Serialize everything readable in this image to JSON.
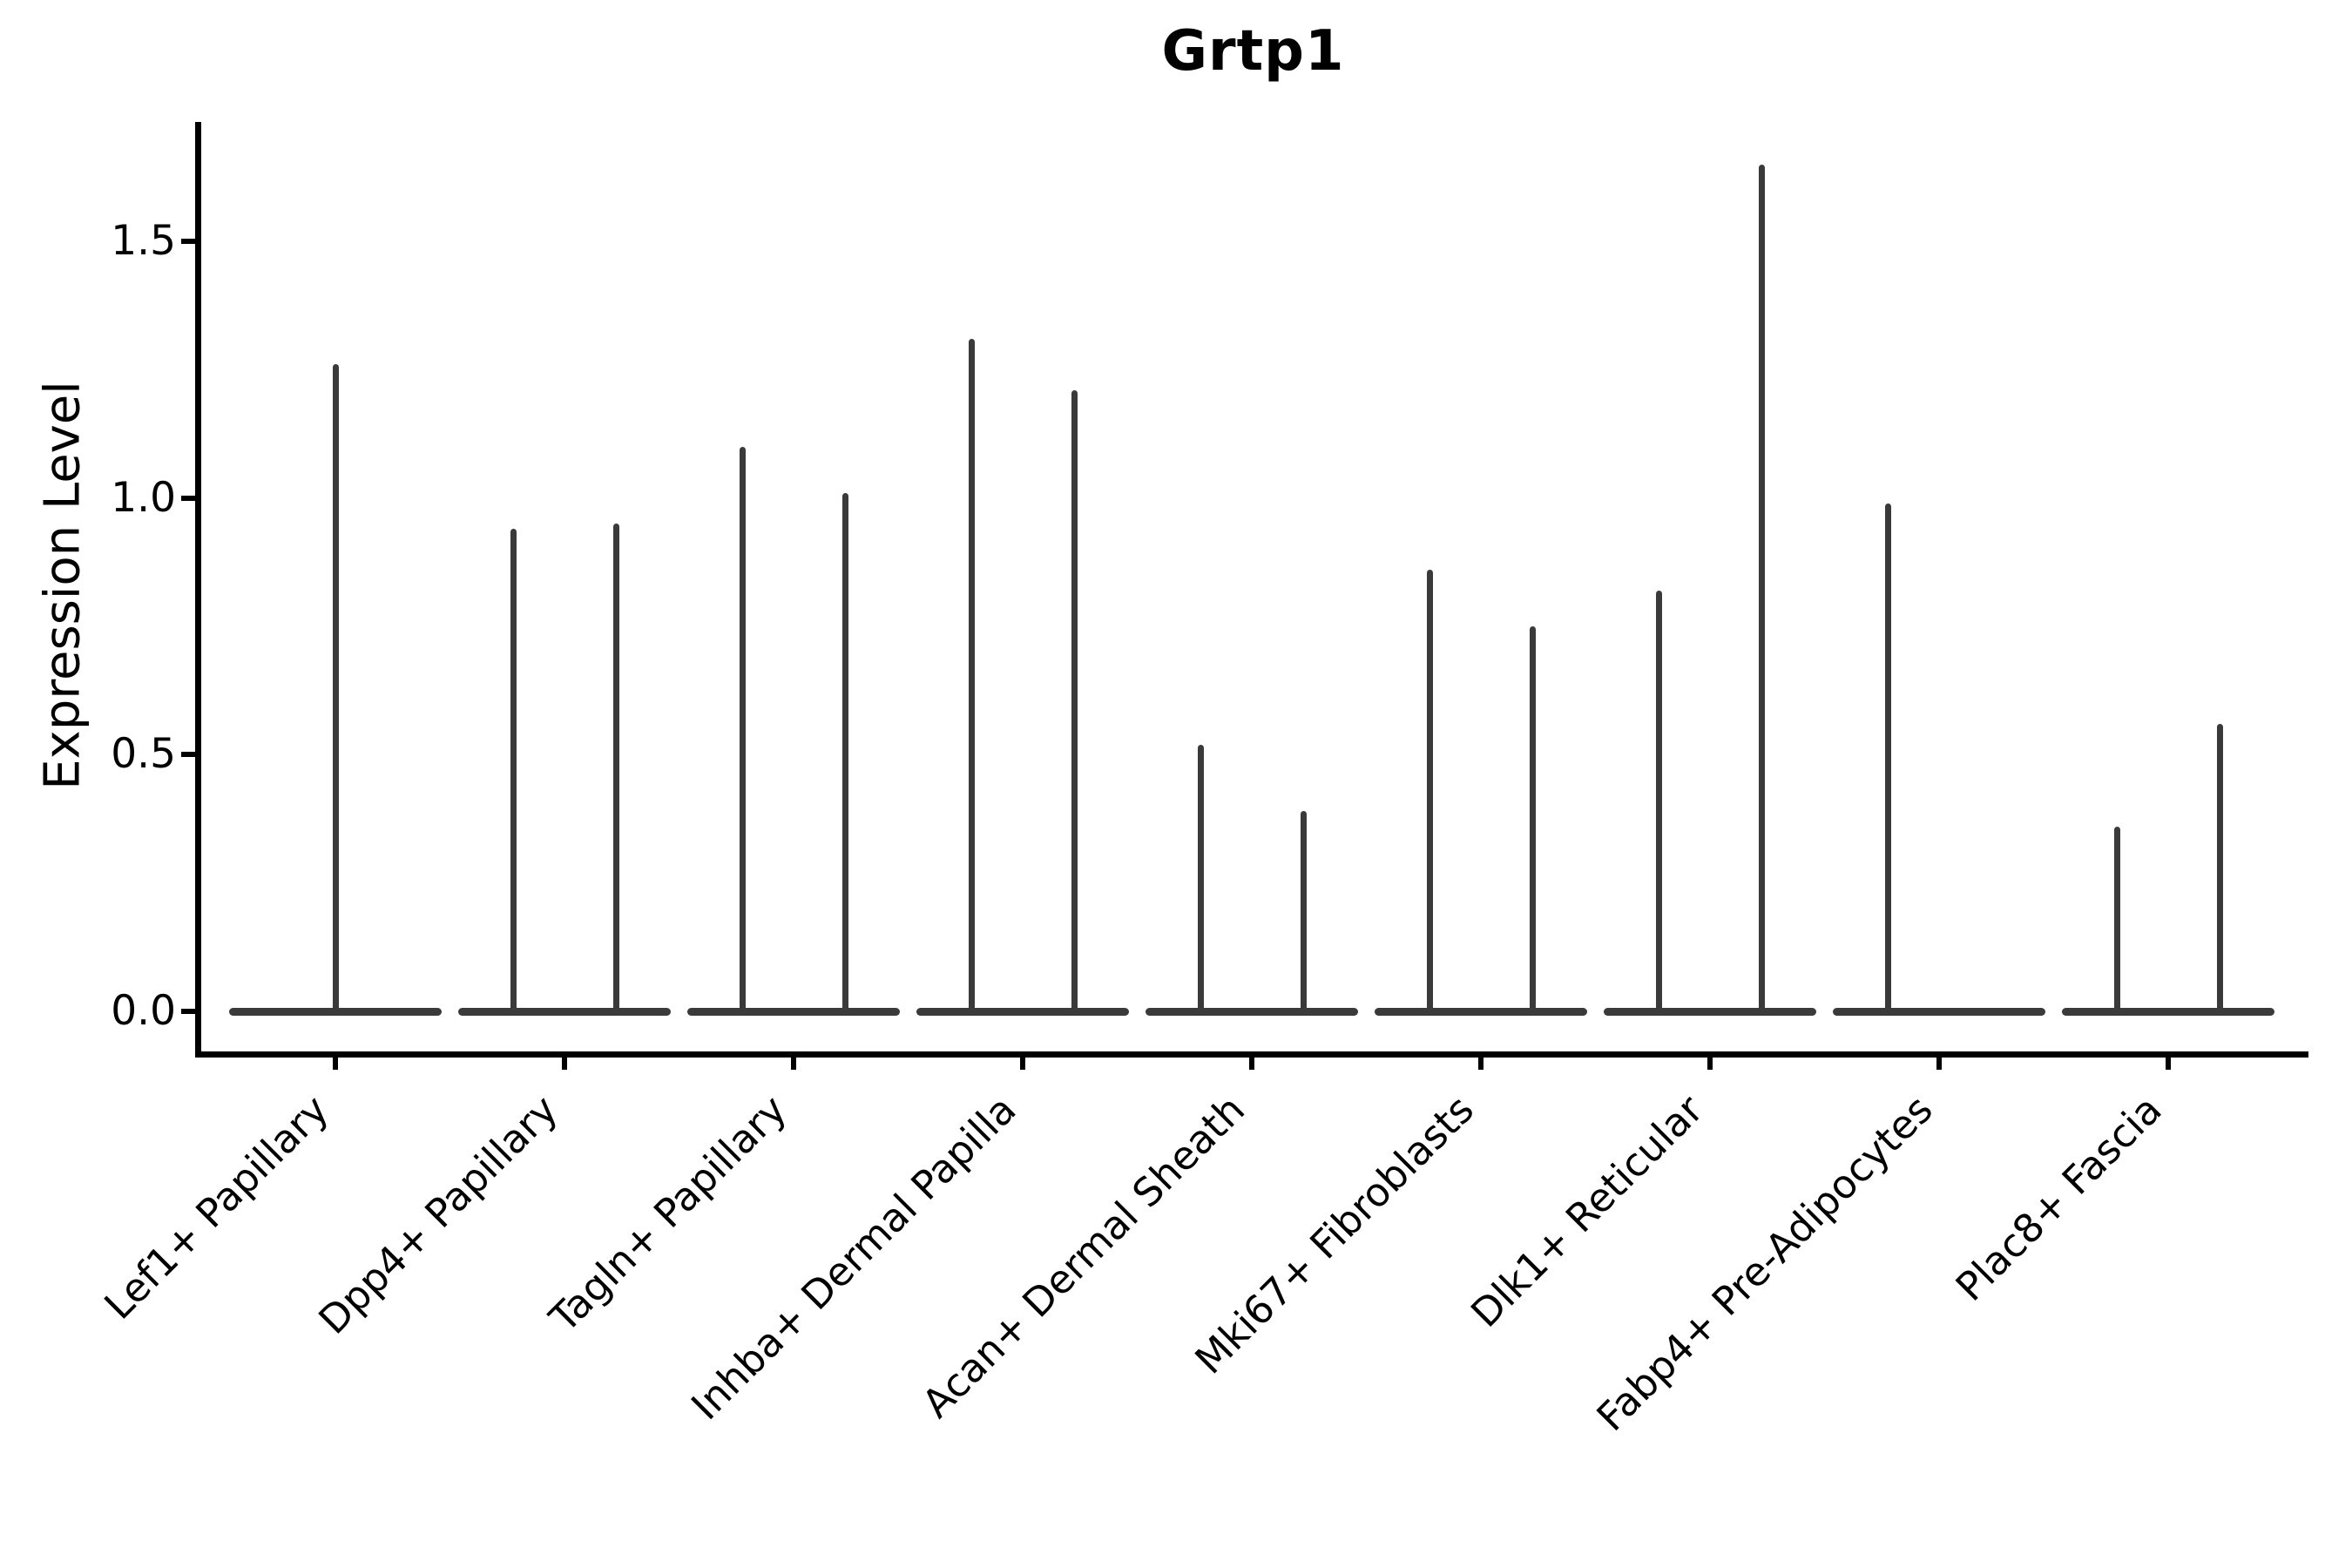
{
  "figure": {
    "background": "#ffffff"
  },
  "colors": {
    "violin": "#3a3a3a",
    "axis": "#000000",
    "text": "#000000"
  },
  "chart_data": {
    "type": "violin",
    "title": "Grtp1",
    "ylabel": "Expression Level",
    "xlabel": "",
    "yticks": [
      0.0,
      0.5,
      1.0,
      1.5
    ],
    "ylim": [
      -0.08,
      1.73
    ],
    "grid": false,
    "legend_position": "none",
    "x_rotation": 45,
    "categories": [
      "Lef1+ Papillary",
      "Dpp4+ Papillary",
      "Tagln+ Papillary",
      "Inhba+ Dermal Papilla",
      "Acan+ Dermal Sheath",
      "Mki67+ Fibroblasts",
      "Dlk1+ Reticular",
      "Fabp4+ Pre-Adipocytes",
      "Plac8+ Fascia"
    ],
    "baseline_value": 0.0,
    "violins": [
      {
        "category": "Lef1+ Papillary",
        "spikes": [
          {
            "pos": "center",
            "max": 1.26
          }
        ]
      },
      {
        "category": "Dpp4+ Papillary",
        "spikes": [
          {
            "pos": "left",
            "max": 0.94
          },
          {
            "pos": "right",
            "max": 0.95
          }
        ]
      },
      {
        "category": "Tagln+ Papillary",
        "spikes": [
          {
            "pos": "left",
            "max": 1.1
          },
          {
            "pos": "right",
            "max": 1.01
          }
        ]
      },
      {
        "category": "Inhba+ Dermal Papilla",
        "spikes": [
          {
            "pos": "left",
            "max": 1.31
          },
          {
            "pos": "right",
            "max": 1.21
          }
        ]
      },
      {
        "category": "Acan+ Dermal Sheath",
        "spikes": [
          {
            "pos": "left",
            "max": 0.52
          },
          {
            "pos": "right",
            "max": 0.39
          }
        ]
      },
      {
        "category": "Mki67+ Fibroblasts",
        "spikes": [
          {
            "pos": "left",
            "max": 0.86
          },
          {
            "pos": "right",
            "max": 0.75
          }
        ]
      },
      {
        "category": "Dlk1+ Reticular",
        "spikes": [
          {
            "pos": "left",
            "max": 0.82
          },
          {
            "pos": "right",
            "max": 1.65
          }
        ]
      },
      {
        "category": "Fabp4+ Pre-Adipocytes",
        "spikes": [
          {
            "pos": "left",
            "max": 0.99
          }
        ]
      },
      {
        "category": "Plac8+ Fascia",
        "spikes": [
          {
            "pos": "left",
            "max": 0.36
          },
          {
            "pos": "right",
            "max": 0.56
          }
        ]
      }
    ]
  }
}
